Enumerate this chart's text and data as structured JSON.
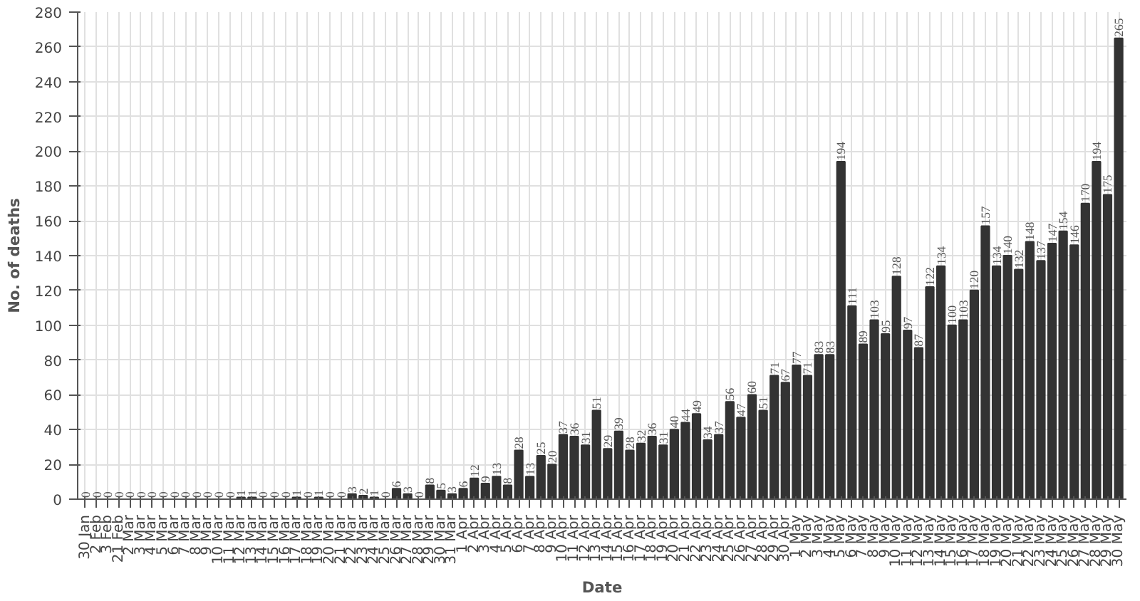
{
  "chart_data": {
    "type": "bar",
    "xlabel": "Date",
    "ylabel": "No. of deaths",
    "categories": [
      "30 Jan",
      "2 Feb",
      "3 Feb",
      "21 Feb",
      "2 Mar",
      "3 Mar",
      "4 Mar",
      "5 Mar",
      "6 Mar",
      "7 Mar",
      "8 Mar",
      "9 Mar",
      "10 Mar",
      "11 Mar",
      "12 Mar",
      "13 Mar",
      "14 Mar",
      "15 Mar",
      "16 Mar",
      "17 Mar",
      "18 Mar",
      "19 Mar",
      "20 Mar",
      "21 Mar",
      "22 Mar",
      "23 Mar",
      "24 Mar",
      "25 Mar",
      "26 Mar",
      "27 Mar",
      "28 Mar",
      "29 Mar",
      "30 Mar",
      "31 Mar",
      "1 Apr",
      "2 Apr",
      "3 Apr",
      "4 Apr",
      "5 Apr",
      "6 Apr",
      "7 Apr",
      "8 Apr",
      "9 Apr",
      "10 Apr",
      "11 Apr",
      "12 Apr",
      "13 Apr",
      "14 Apr",
      "15 Apr",
      "16 Apr",
      "17 Apr",
      "18 Apr",
      "19 Apr",
      "20 Apr",
      "21 Apr",
      "22 Apr",
      "23 Apr",
      "24 Apr",
      "25 Apr",
      "26 Apr",
      "27 Apr",
      "28 Apr",
      "29 Apr",
      "30 Apr",
      "1 May",
      "2 May",
      "3 May",
      "4 May",
      "5 May",
      "6 May",
      "7 May",
      "8 May",
      "9 May",
      "10 May",
      "11 May",
      "12 May",
      "13 May",
      "14 May",
      "15 May",
      "16 May",
      "17 May",
      "18 May",
      "19 May",
      "20 May",
      "21 May",
      "22 May",
      "23 May",
      "24 May",
      "25 May",
      "26 May",
      "27 May",
      "28 May",
      "29 May",
      "30 May"
    ],
    "values": [
      0,
      0,
      0,
      0,
      0,
      0,
      0,
      0,
      0,
      0,
      0,
      0,
      0,
      0,
      1,
      1,
      0,
      0,
      0,
      1,
      0,
      1,
      0,
      0,
      3,
      2,
      1,
      0,
      6,
      3,
      0,
      8,
      5,
      3,
      6,
      12,
      9,
      13,
      8,
      28,
      13,
      25,
      20,
      37,
      36,
      31,
      51,
      29,
      39,
      28,
      32,
      36,
      31,
      40,
      44,
      49,
      34,
      37,
      56,
      47,
      60,
      51,
      71,
      67,
      77,
      71,
      83,
      83,
      194,
      111,
      89,
      103,
      95,
      128,
      97,
      87,
      122,
      134,
      100,
      103,
      120,
      157,
      134,
      140,
      132,
      148,
      137,
      147,
      154,
      146,
      170,
      194,
      175,
      265
    ],
    "color": "#333333",
    "data_labels": true,
    "grid": true,
    "ylim": [
      0,
      280
    ],
    "yticks": [
      0,
      20,
      40,
      60,
      80,
      100,
      120,
      140,
      160,
      180,
      200,
      220,
      240,
      260,
      280
    ]
  }
}
